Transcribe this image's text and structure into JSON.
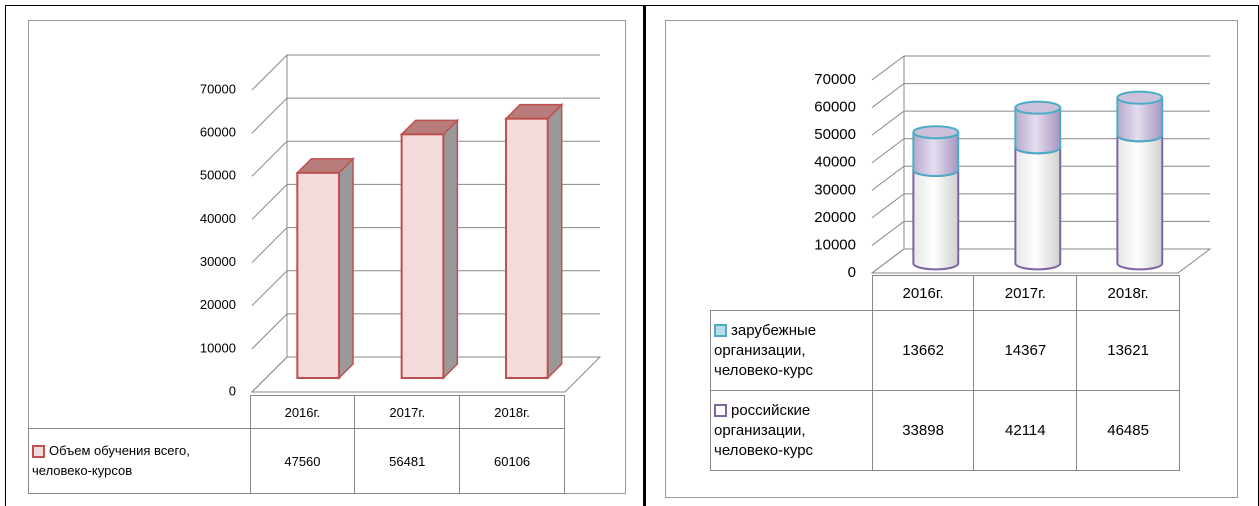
{
  "chart_data": [
    {
      "type": "bar",
      "categories": [
        "2016г.",
        "2017г.",
        "2018г."
      ],
      "series": [
        {
          "name": "Объем обучения всего, человеко-курсов",
          "color": "#c0504d",
          "values": [
            47560,
            56481,
            60106
          ]
        }
      ],
      "ylim": [
        0,
        70000
      ],
      "yticks": [
        0,
        10000,
        20000,
        30000,
        40000,
        50000,
        60000,
        70000
      ],
      "grid": true,
      "data_table": true
    },
    {
      "type": "bar",
      "stacked": true,
      "shape": "cylinder",
      "categories": [
        "2016г.",
        "2017г.",
        "2018г."
      ],
      "series": [
        {
          "name": "зарубежные организации, человеко-курс",
          "color": "#4bacc6",
          "values": [
            13662,
            14367,
            13621
          ]
        },
        {
          "name": "российские организации, человеко-курс",
          "color": "#8064a2",
          "values": [
            33898,
            42114,
            46485
          ]
        }
      ],
      "ylim": [
        0,
        70000
      ],
      "yticks": [
        0,
        10000,
        20000,
        30000,
        40000,
        50000,
        60000,
        70000
      ],
      "grid": true,
      "data_table": true
    }
  ]
}
